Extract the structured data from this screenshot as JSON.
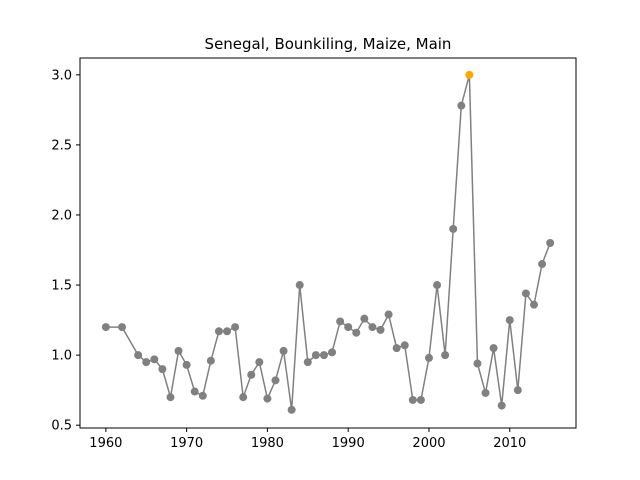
{
  "chart_data": {
    "type": "line",
    "title": "Senegal, Bounkiling, Maize, Main",
    "xlabel": "",
    "ylabel": "",
    "xlim": [
      1956.8,
      2018.2
    ],
    "ylim": [
      0.48,
      3.12
    ],
    "xticks": [
      1960,
      1970,
      1980,
      1990,
      2000,
      2010
    ],
    "yticks": [
      0.5,
      1.0,
      1.5,
      2.0,
      2.5,
      3.0
    ],
    "xtick_labels": [
      "1960",
      "1970",
      "1980",
      "1990",
      "2000",
      "2010"
    ],
    "ytick_labels": [
      "0.5",
      "1.0",
      "1.5",
      "2.0",
      "2.5",
      "3.0"
    ],
    "grid": false,
    "line_color": "#808080",
    "marker_color": "#808080",
    "highlight_color": "#ffa500",
    "highlight_x": 2005,
    "series": [
      {
        "x": [
          1960,
          1962,
          1964,
          1965,
          1966,
          1967,
          1968,
          1969,
          1970,
          1971,
          1972,
          1973,
          1974,
          1975,
          1976,
          1977,
          1978,
          1979,
          1980,
          1981,
          1982,
          1983,
          1984,
          1985,
          1986,
          1987,
          1988,
          1989,
          1990,
          1991,
          1992,
          1993,
          1994,
          1995,
          1996,
          1997,
          1998,
          1999,
          2000,
          2001,
          2002,
          2003,
          2004,
          2005,
          2006,
          2007,
          2008,
          2009,
          2010,
          2011,
          2012,
          2013,
          2014,
          2015
        ],
        "y": [
          1.2,
          1.2,
          1.0,
          0.95,
          0.97,
          0.9,
          0.7,
          1.03,
          0.93,
          0.74,
          0.71,
          0.96,
          1.17,
          1.17,
          1.2,
          0.7,
          0.86,
          0.95,
          0.69,
          0.82,
          1.03,
          0.61,
          1.5,
          0.95,
          1.0,
          1.0,
          1.02,
          1.24,
          1.2,
          1.16,
          1.26,
          1.2,
          1.18,
          1.29,
          1.05,
          1.07,
          0.68,
          0.68,
          0.98,
          1.5,
          1.0,
          1.9,
          2.78,
          3.0,
          0.94,
          0.73,
          1.05,
          0.64,
          1.25,
          0.75,
          1.44,
          1.36,
          1.65,
          1.8
        ]
      }
    ]
  }
}
